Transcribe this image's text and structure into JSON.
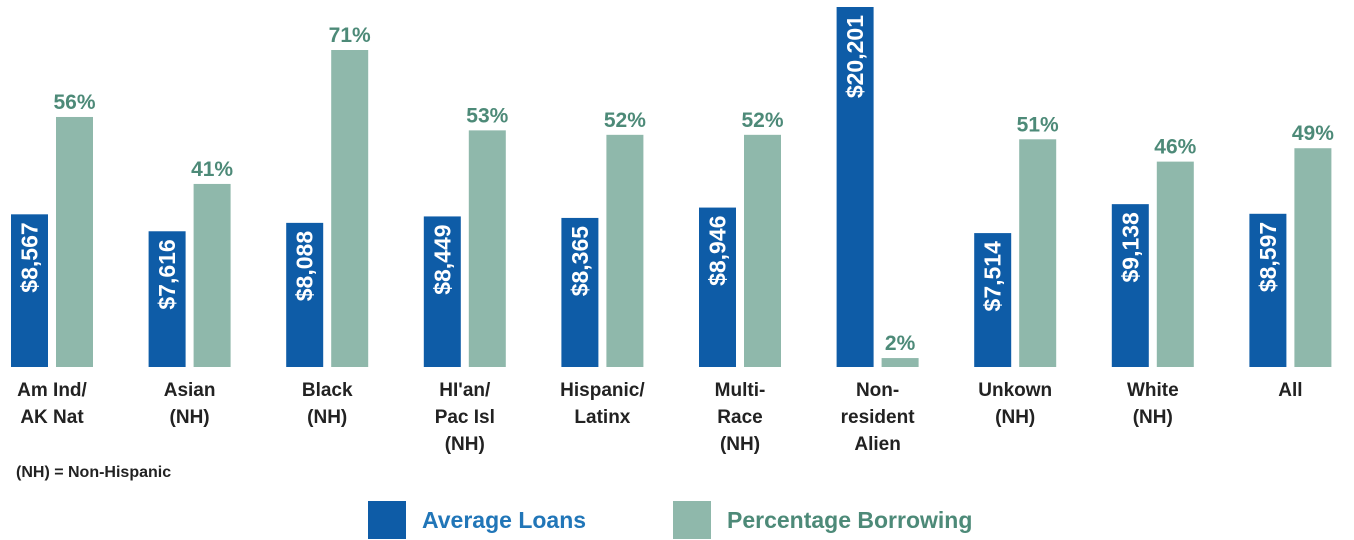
{
  "chart_data": {
    "type": "bar",
    "categories": [
      "Am Ind/\nAK Nat",
      "Asian\n(NH)",
      "Black\n(NH)",
      "HI'an/\nPac Isl\n(NH)",
      "Hispanic/\nLatinx",
      "Multi-\nRace\n(NH)",
      "Non-\nresident\nAlien",
      "Unkown\n(NH)",
      "White\n(NH)",
      "All"
    ],
    "series": [
      {
        "name": "Average Loans",
        "values": [
          8567,
          7616,
          8088,
          8449,
          8365,
          8946,
          20201,
          7514,
          9138,
          8597
        ],
        "labels": [
          "$8,567",
          "$7,616",
          "$8,088",
          "$8,449",
          "$8,365",
          "$8,946",
          "$20,201",
          "$7,514",
          "$9,138",
          "$8,597"
        ],
        "color": "#0e5ca7"
      },
      {
        "name": "Percentage Borrowing",
        "values": [
          56,
          41,
          71,
          53,
          52,
          52,
          2,
          51,
          46,
          49
        ],
        "labels": [
          "56%",
          "41%",
          "71%",
          "53%",
          "52%",
          "52%",
          "2%",
          "51%",
          "46%",
          "49%"
        ],
        "color": "#8fb8ab",
        "label_color": "#4d8a78"
      }
    ],
    "title": "",
    "xlabel": "",
    "ylabel": "",
    "grid": false,
    "legend_position": "bottom"
  },
  "footnote": "(NH) = Non-Hispanic",
  "legend": {
    "items": [
      "Average Loans",
      "Percentage Borrowing"
    ],
    "colors": [
      "#0e5ca7",
      "#8fb8ab"
    ],
    "text_color": "#2176b8"
  }
}
